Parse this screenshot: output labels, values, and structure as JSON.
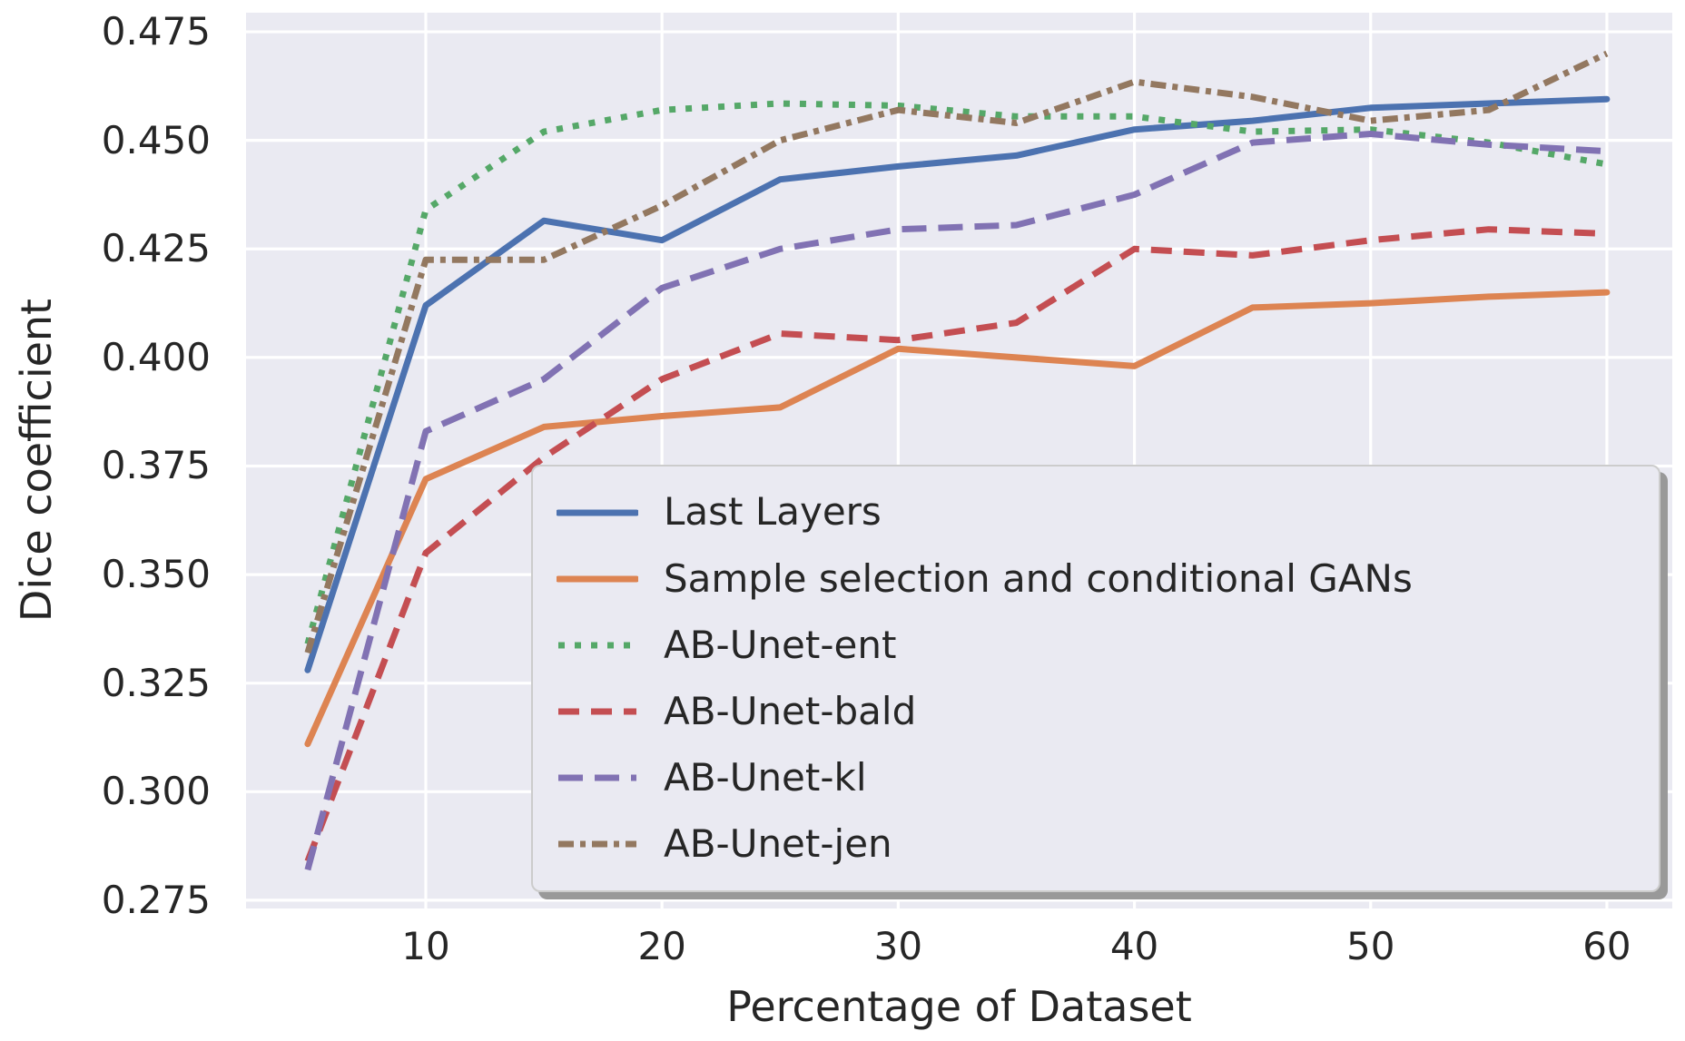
{
  "chart_data": {
    "type": "line",
    "title": "",
    "xlabel": "Percentage of Dataset",
    "ylabel": "Dice coefficient",
    "grid": true,
    "plot_background": "#EAEAF2",
    "grid_color": "#ffffff",
    "text_color": "#262626",
    "xlim": [
      2.39,
      62.77
    ],
    "ylim": [
      0.2731,
      0.4794
    ],
    "xticks": [
      {
        "value": 10,
        "label": "10"
      },
      {
        "value": 20,
        "label": "20"
      },
      {
        "value": 30,
        "label": "30"
      },
      {
        "value": 40,
        "label": "40"
      },
      {
        "value": 50,
        "label": "50"
      },
      {
        "value": 60,
        "label": "60"
      }
    ],
    "yticks": [
      {
        "value": 0.475,
        "label": "0.475"
      },
      {
        "value": 0.45,
        "label": "0.450"
      },
      {
        "value": 0.425,
        "label": "0.425"
      },
      {
        "value": 0.4,
        "label": "0.400"
      },
      {
        "value": 0.375,
        "label": "0.375"
      },
      {
        "value": 0.35,
        "label": "0.350"
      },
      {
        "value": 0.325,
        "label": "0.325"
      },
      {
        "value": 0.3,
        "label": "0.300"
      },
      {
        "value": 0.275,
        "label": "0.275"
      }
    ],
    "x": [
      5,
      10,
      15,
      20,
      25,
      30,
      35,
      40,
      45,
      50,
      55,
      60
    ],
    "series": [
      {
        "name": "Last Layers",
        "color": "#4C72B0",
        "style": "solid",
        "values": [
          0.328,
          0.412,
          0.4315,
          0.427,
          0.441,
          0.444,
          0.4465,
          0.4525,
          0.4545,
          0.4575,
          0.4585,
          0.4595
        ]
      },
      {
        "name": "Sample selection and conditional GANs",
        "color": "#DD8452",
        "style": "solid",
        "values": [
          0.311,
          0.372,
          0.384,
          0.3865,
          0.3885,
          0.402,
          0.4,
          0.398,
          0.4115,
          0.4125,
          0.414,
          0.415
        ]
      },
      {
        "name": "AB-Unet-ent",
        "color": "#55A868",
        "style": "dotted",
        "values": [
          0.334,
          0.434,
          0.452,
          0.457,
          0.4585,
          0.458,
          0.4555,
          0.4555,
          0.452,
          0.4525,
          0.4495,
          0.4445
        ]
      },
      {
        "name": "AB-Unet-bald",
        "color": "#C44E52",
        "style": "dashed",
        "values": [
          0.284,
          0.355,
          0.377,
          0.395,
          0.4055,
          0.404,
          0.408,
          0.425,
          0.4235,
          0.427,
          0.4295,
          0.4285
        ]
      },
      {
        "name": "AB-Unet-kl",
        "color": "#8172B3",
        "style": "longdash",
        "values": [
          0.282,
          0.383,
          0.395,
          0.416,
          0.425,
          0.4295,
          0.4305,
          0.4375,
          0.4495,
          0.4515,
          0.449,
          0.4475
        ]
      },
      {
        "name": "AB-Unet-jen",
        "color": "#937860",
        "style": "dashdot",
        "values": [
          0.332,
          0.4225,
          0.4225,
          0.435,
          0.45,
          0.457,
          0.454,
          0.4635,
          0.46,
          0.4545,
          0.457,
          0.47
        ]
      }
    ],
    "legend_position": "lower right"
  }
}
